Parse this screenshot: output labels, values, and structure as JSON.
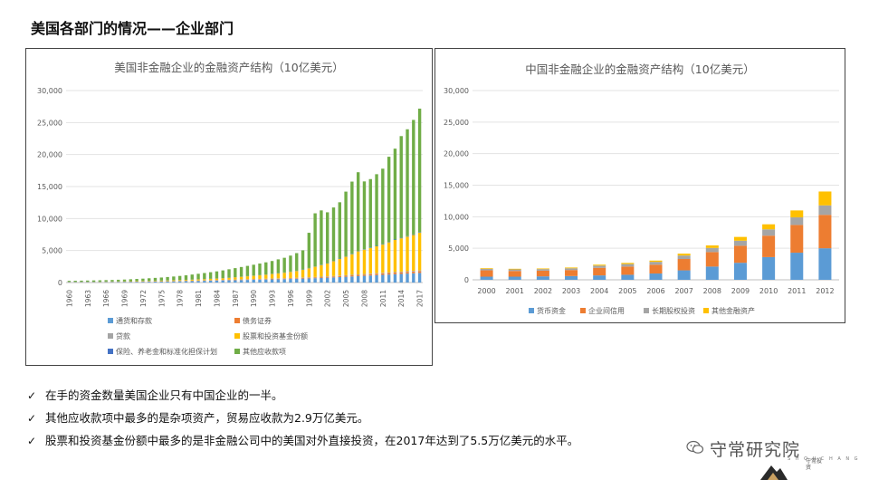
{
  "page": {
    "title": "美国各部门的情况——企业部门"
  },
  "chart_data": [
    {
      "id": "us",
      "type": "bar",
      "stacked": true,
      "title": "美国非金融企业的金融资产结构（10亿美元）",
      "xlabel": "",
      "ylabel": "",
      "ylim": [
        0,
        30000
      ],
      "yticks": [
        "0",
        "5,000",
        "10,000",
        "15,000",
        "20,000",
        "25,000",
        "30,000"
      ],
      "ytick_values": [
        0,
        5000,
        10000,
        15000,
        20000,
        25000,
        30000
      ],
      "grid": true,
      "legend_position": "bottom",
      "categories": [
        1960,
        1961,
        1962,
        1963,
        1964,
        1965,
        1966,
        1967,
        1968,
        1969,
        1970,
        1971,
        1972,
        1973,
        1974,
        1975,
        1976,
        1977,
        1978,
        1979,
        1980,
        1981,
        1982,
        1983,
        1984,
        1985,
        1986,
        1987,
        1988,
        1989,
        1990,
        1991,
        1992,
        1993,
        1994,
        1995,
        1996,
        1997,
        1998,
        1999,
        2000,
        2001,
        2002,
        2003,
        2004,
        2005,
        2006,
        2007,
        2008,
        2009,
        2010,
        2011,
        2012,
        2013,
        2014,
        2015,
        2016,
        2017
      ],
      "tick_labels": [
        "1960",
        "1963",
        "1966",
        "1969",
        "1972",
        "1975",
        "1978",
        "1981",
        "1984",
        "1987",
        "1990",
        "1993",
        "1996",
        "1999",
        "2002",
        "2005",
        "2008",
        "2011",
        "2014",
        "2017"
      ],
      "series": [
        {
          "name": "通货和存款",
          "color": "#5B9BD5",
          "values": [
            60,
            62,
            65,
            68,
            72,
            76,
            80,
            84,
            90,
            96,
            102,
            110,
            120,
            130,
            140,
            150,
            165,
            180,
            195,
            210,
            230,
            250,
            270,
            290,
            310,
            330,
            350,
            370,
            390,
            410,
            430,
            450,
            470,
            490,
            510,
            530,
            560,
            590,
            620,
            650,
            680,
            720,
            760,
            800,
            850,
            900,
            950,
            1000,
            1050,
            1100,
            1150,
            1200,
            1250,
            1300,
            1350,
            1400,
            1450,
            1500
          ]
        },
        {
          "name": "债务证券",
          "color": "#ED7D31",
          "values": [
            10,
            10,
            11,
            11,
            12,
            12,
            13,
            14,
            15,
            16,
            18,
            20,
            22,
            24,
            26,
            28,
            30,
            32,
            34,
            36,
            38,
            40,
            42,
            45,
            48,
            52,
            56,
            60,
            64,
            68,
            72,
            76,
            80,
            84,
            88,
            92,
            96,
            100,
            105,
            110,
            120,
            130,
            140,
            150,
            160,
            170,
            180,
            190,
            200,
            210,
            220,
            230,
            240,
            250,
            260,
            270,
            280,
            290
          ]
        },
        {
          "name": "贷款",
          "color": "#A5A5A5",
          "values": [
            10,
            10,
            11,
            11,
            12,
            13,
            14,
            15,
            16,
            17,
            18,
            19,
            20,
            21,
            22,
            23,
            24,
            25,
            27,
            29,
            31,
            33,
            35,
            37,
            39,
            41,
            43,
            45,
            47,
            49,
            51,
            53,
            55,
            57,
            59,
            61,
            63,
            65,
            67,
            69,
            71,
            73,
            75,
            77,
            79,
            81,
            83,
            85,
            87,
            89,
            91,
            93,
            95,
            97,
            99,
            101,
            103,
            105
          ]
        },
        {
          "name": "股票和投资基金份额",
          "color": "#FFC000",
          "values": [
            30,
            32,
            34,
            36,
            40,
            44,
            48,
            52,
            56,
            60,
            65,
            70,
            75,
            80,
            85,
            90,
            100,
            110,
            120,
            135,
            150,
            165,
            180,
            200,
            225,
            250,
            300,
            350,
            400,
            450,
            500,
            560,
            620,
            700,
            780,
            850,
            950,
            1050,
            1200,
            1400,
            1600,
            1800,
            2000,
            2300,
            2600,
            2900,
            3200,
            3600,
            3800,
            4000,
            4200,
            4400,
            4700,
            5000,
            5200,
            5400,
            5600,
            5900
          ]
        },
        {
          "name": "保险、养老金和标准化担保计划",
          "color": "#4472C4",
          "values": [
            5,
            5,
            5,
            6,
            6,
            6,
            7,
            7,
            8,
            8,
            9,
            10,
            11,
            12,
            13,
            14,
            15,
            16,
            17,
            18,
            19,
            20,
            21,
            22,
            23,
            24,
            25,
            26,
            27,
            28,
            29,
            30,
            32,
            34,
            36,
            38,
            40,
            42,
            44,
            46,
            48,
            50,
            52,
            54,
            56,
            58,
            60,
            62,
            64,
            66,
            68,
            70,
            72,
            74,
            76,
            78,
            80,
            82
          ]
        },
        {
          "name": "其他应收款项",
          "color": "#70AD47",
          "values": [
            150,
            160,
            170,
            180,
            190,
            200,
            215,
            230,
            250,
            270,
            300,
            330,
            360,
            400,
            440,
            480,
            530,
            580,
            640,
            700,
            780,
            860,
            940,
            1020,
            1100,
            1200,
            1300,
            1400,
            1500,
            1600,
            1700,
            1800,
            1900,
            2000,
            2150,
            2300,
            2500,
            2750,
            3000,
            5500,
            8300,
            8500,
            7950,
            8350,
            8800,
            10100,
            11300,
            12300,
            10600,
            10700,
            11200,
            11800,
            13300,
            14200,
            15900,
            16700,
            17900,
            19300
          ]
        }
      ]
    },
    {
      "id": "cn",
      "type": "bar",
      "stacked": true,
      "title": "中国非金融企业的金融资产结构（10亿美元）",
      "xlabel": "",
      "ylabel": "",
      "ylim": [
        0,
        30000
      ],
      "yticks": [
        "0",
        "5,000",
        "10,000",
        "15,000",
        "20,000",
        "25,000",
        "30,000"
      ],
      "ytick_values": [
        0,
        5000,
        10000,
        15000,
        20000,
        25000,
        30000
      ],
      "grid": true,
      "legend_position": "bottom",
      "categories": [
        "2000",
        "2001",
        "2002",
        "2003",
        "2004",
        "2005",
        "2006",
        "2007",
        "2008",
        "2009",
        "2010",
        "2011",
        "2012"
      ],
      "series": [
        {
          "name": "货币资金",
          "color": "#5B9BD5",
          "values": [
            500,
            500,
            550,
            600,
            700,
            800,
            1000,
            1500,
            2100,
            2700,
            3600,
            4300,
            5000
          ]
        },
        {
          "name": "企业间信用",
          "color": "#ED7D31",
          "values": [
            1000,
            900,
            900,
            950,
            1200,
            1300,
            1400,
            1800,
            2300,
            2700,
            3400,
            4400,
            5300
          ]
        },
        {
          "name": "长期股权投资",
          "color": "#A5A5A5",
          "values": [
            250,
            250,
            250,
            280,
            350,
            400,
            450,
            550,
            650,
            800,
            1000,
            1200,
            1500
          ]
        },
        {
          "name": "其他金融资产",
          "color": "#FFC000",
          "values": [
            100,
            100,
            100,
            120,
            150,
            180,
            200,
            300,
            400,
            600,
            800,
            1100,
            2200
          ]
        }
      ]
    }
  ],
  "bullets": [
    "在手的资金数量美国企业只有中国企业的一半。",
    "其他应收款项中最多的是杂项资产，贸易应收款为2.9万亿美元。",
    "股票和投资基金份额中最多的是非金融公司中的美国对外直接投资，在2017年达到了5.5万亿美元的水平。"
  ],
  "check_glyph": "✓",
  "watermark": {
    "name": "守常研究院",
    "letters": "S H O U C H A N G",
    "sub": "守常投资"
  }
}
